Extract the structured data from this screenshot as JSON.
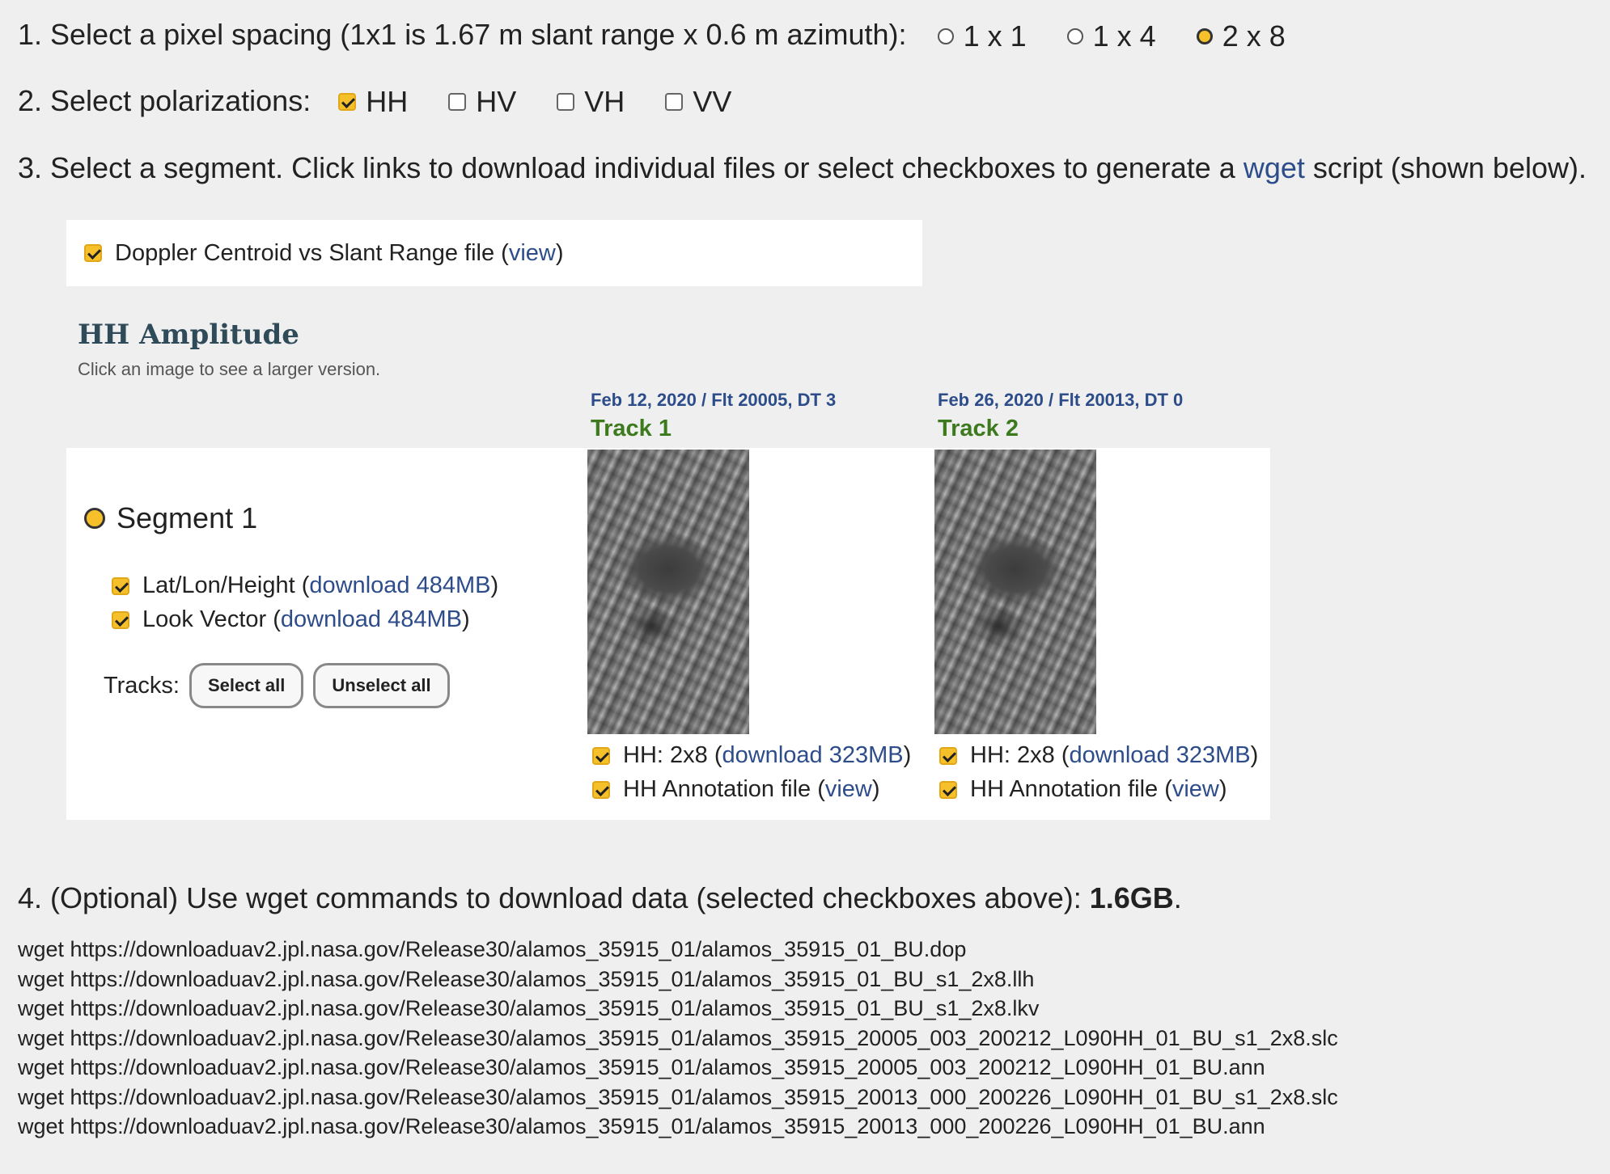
{
  "step1": {
    "label": "1. Select a pixel spacing (1x1 is 1.67 m slant range x 0.6 m azimuth):",
    "options": [
      {
        "label": "1 x 1",
        "selected": false
      },
      {
        "label": "1 x 4",
        "selected": false
      },
      {
        "label": "2 x 8",
        "selected": true
      }
    ]
  },
  "step2": {
    "label": "2. Select polarizations:",
    "options": [
      {
        "label": "HH",
        "checked": true
      },
      {
        "label": "HV",
        "checked": false
      },
      {
        "label": "VH",
        "checked": false
      },
      {
        "label": "VV",
        "checked": false
      }
    ]
  },
  "step3": {
    "prefix": "3. Select a segment. Click links to download individual files or select checkboxes to generate a",
    "link": "wget",
    "suffix": "script (shown below)."
  },
  "doppler": {
    "label": "Doppler Centroid vs Slant Range file (",
    "link": "view",
    "close": ")",
    "checked": true
  },
  "amplitude": {
    "title": "HH Amplitude",
    "subtitle": "Click an image to see a larger version."
  },
  "tracks": [
    {
      "date": "Feb 12, 2020 / Flt 20005, DT 3",
      "name": "Track 1",
      "files": [
        {
          "label": "HH: 2x8 (",
          "link": "download 323MB",
          "close": ")",
          "checked": true
        },
        {
          "label": "HH Annotation file (",
          "link": "view",
          "close": ")",
          "checked": true
        }
      ]
    },
    {
      "date": "Feb 26, 2020 / Flt 20013, DT 0",
      "name": "Track 2",
      "files": [
        {
          "label": "HH: 2x8 (",
          "link": "download 323MB",
          "close": ")",
          "checked": true
        },
        {
          "label": "HH Annotation file (",
          "link": "view",
          "close": ")",
          "checked": true
        }
      ]
    }
  ],
  "segment": {
    "name": "Segment 1",
    "selected": true,
    "files": [
      {
        "label": "Lat/Lon/Height (",
        "link": "download 484MB",
        "close": ")",
        "checked": true
      },
      {
        "label": "Look Vector (",
        "link": "download 484MB",
        "close": ")",
        "checked": true
      }
    ],
    "tracks_label": "Tracks:",
    "select_all": "Select all",
    "unselect_all": "Unselect all"
  },
  "step4": {
    "label": "4. (Optional) Use wget commands to download data (selected checkboxes above):",
    "size": "1.6GB",
    "period": "."
  },
  "wget_lines": [
    "wget https://downloaduav2.jpl.nasa.gov/Release30/alamos_35915_01/alamos_35915_01_BU.dop",
    "wget https://downloaduav2.jpl.nasa.gov/Release30/alamos_35915_01/alamos_35915_01_BU_s1_2x8.llh",
    "wget https://downloaduav2.jpl.nasa.gov/Release30/alamos_35915_01/alamos_35915_01_BU_s1_2x8.lkv",
    "wget https://downloaduav2.jpl.nasa.gov/Release30/alamos_35915_01/alamos_35915_20005_003_200212_L090HH_01_BU_s1_2x8.slc",
    "wget https://downloaduav2.jpl.nasa.gov/Release30/alamos_35915_01/alamos_35915_20005_003_200212_L090HH_01_BU.ann",
    "wget https://downloaduav2.jpl.nasa.gov/Release30/alamos_35915_01/alamos_35915_20013_000_200226_L090HH_01_BU_s1_2x8.slc",
    "wget https://downloaduav2.jpl.nasa.gov/Release30/alamos_35915_01/alamos_35915_20013_000_200226_L090HH_01_BU.ann"
  ]
}
